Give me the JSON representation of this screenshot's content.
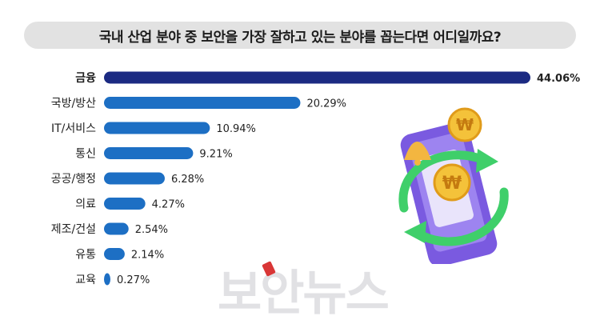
{
  "title": "국내 산업 분야 중 보안을 가장 잘하고 있는 분야를 꼽는다면 어디일까요?",
  "watermark": "보안뉴스",
  "colors": {
    "highlight": "#1b2a82",
    "bar": "#1d6fc4",
    "title_bg": "#e2e2e2"
  },
  "chart_data": {
    "type": "bar",
    "orientation": "horizontal",
    "title": "국내 산업 분야 중 보안을 가장 잘하고 있는 분야를 꼽는다면 어디일까요?",
    "categories": [
      "금융",
      "국방/방산",
      "IT/서비스",
      "통신",
      "공공/행정",
      "의료",
      "제조/건설",
      "유통",
      "교육"
    ],
    "values": [
      44.06,
      20.29,
      10.94,
      9.21,
      6.28,
      4.27,
      2.54,
      2.14,
      0.27
    ],
    "labels": [
      "44.06%",
      "20.29%",
      "10.94%",
      "9.21%",
      "6.28%",
      "4.27%",
      "2.54%",
      "2.14%",
      "0.27%"
    ],
    "unit": "%",
    "xlim": [
      0,
      44.06
    ],
    "highlight_index": 0,
    "grid": false,
    "legend": "none"
  }
}
